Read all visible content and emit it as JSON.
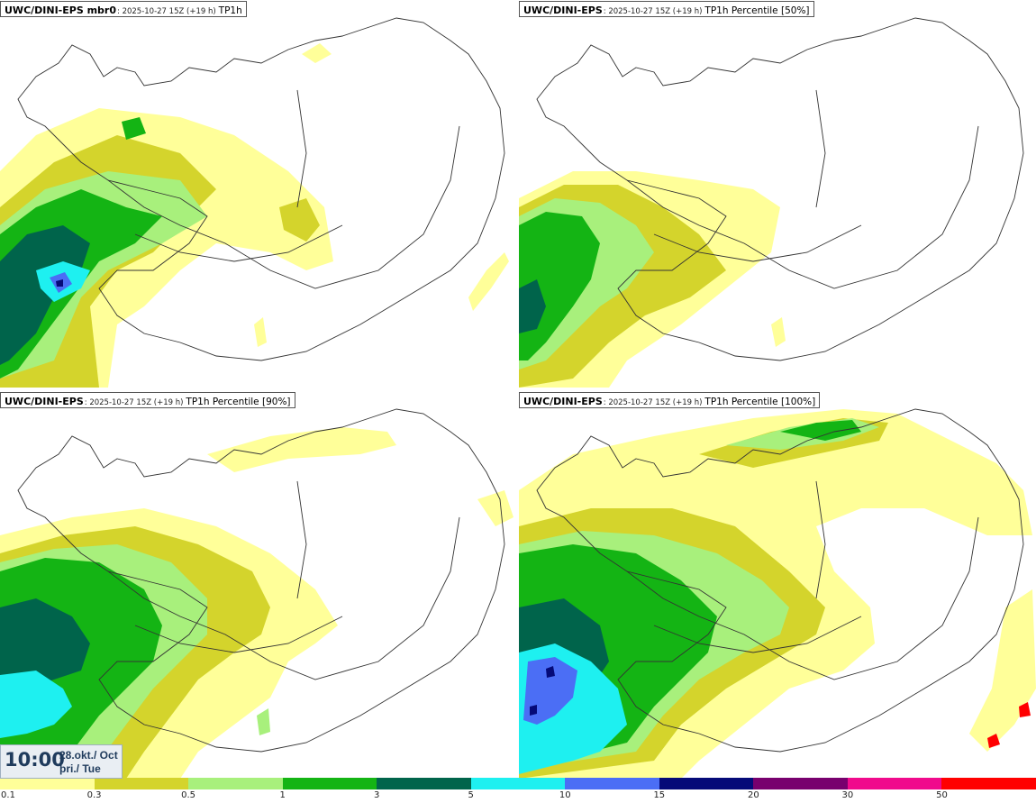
{
  "panels": [
    {
      "model": "UWC/DINI-EPS mbr0",
      "run": ": 2025-10-27 15Z (+19 h)",
      "param": "TP1h"
    },
    {
      "model": "UWC/DINI-EPS",
      "run": ": 2025-10-27 15Z (+19 h)",
      "param": "TP1h Percentile [50%]"
    },
    {
      "model": "UWC/DINI-EPS",
      "run": ": 2025-10-27 15Z (+19 h)",
      "param": "TP1h Percentile [90%]"
    },
    {
      "model": "UWC/DINI-EPS",
      "run": ": 2025-10-27 15Z (+19 h)",
      "param": "TP1h Percentile [100%]"
    }
  ],
  "valid_time": {
    "time": "10:00",
    "date": "28.okt./ Oct",
    "weekday": "þri./ Tue"
  },
  "legend": {
    "ticks": [
      "0.1",
      "0.3",
      "0.5",
      "1",
      "3",
      "5",
      "10",
      "15",
      "20",
      "30",
      "50"
    ],
    "colors": [
      "#ffff99",
      "#d4d42c",
      "#a8f07c",
      "#14b414",
      "#00644b",
      "#1ef0f0",
      "#4b6ef5",
      "#050a78",
      "#78006e",
      "#f00a8c",
      "#ff0000"
    ]
  },
  "colors": {
    "coast": "#333333",
    "level1": "#ffff99",
    "level2": "#d4d42c",
    "level3": "#a8f07c",
    "level4": "#14b414",
    "level5": "#00644b",
    "level6": "#1ef0f0",
    "level7": "#4b6ef5",
    "level8": "#050a78"
  }
}
